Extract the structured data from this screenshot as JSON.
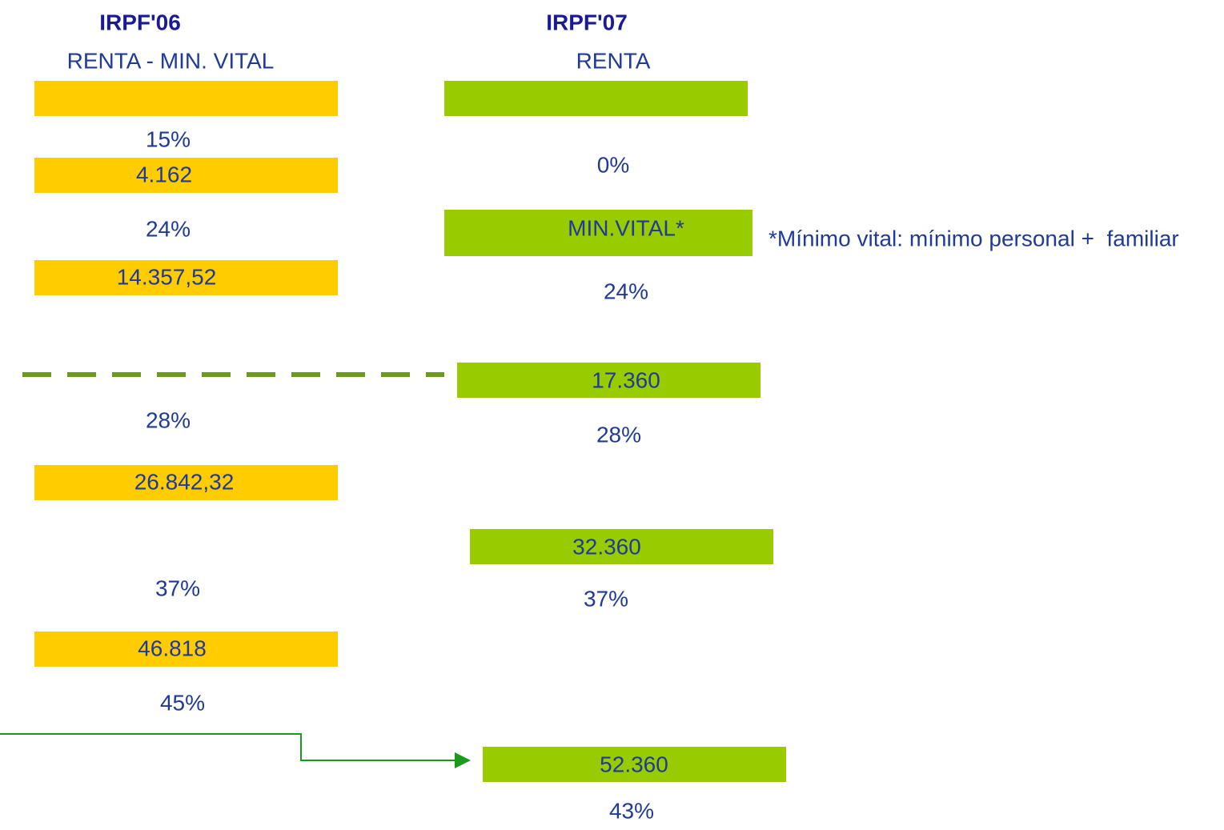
{
  "irpf06": {
    "title": "IRPF'06",
    "subtitle": "RENTA - MIN. VITAL",
    "limits": [
      "4.162",
      "14.357,52",
      "26.842,32",
      "46.818"
    ],
    "rates": [
      "15%",
      "24%",
      "28%",
      "37%",
      "45%"
    ]
  },
  "irpf07": {
    "title": "IRPF'07",
    "subtitle": "RENTA",
    "limits": [
      "MIN.VITAL*",
      "17.360",
      "32.360",
      "52.360"
    ],
    "rates": [
      "0%",
      "24%",
      "28%",
      "37%",
      "43%"
    ]
  },
  "note": "*Mínimo vital: mínimo personal +  familiar"
}
